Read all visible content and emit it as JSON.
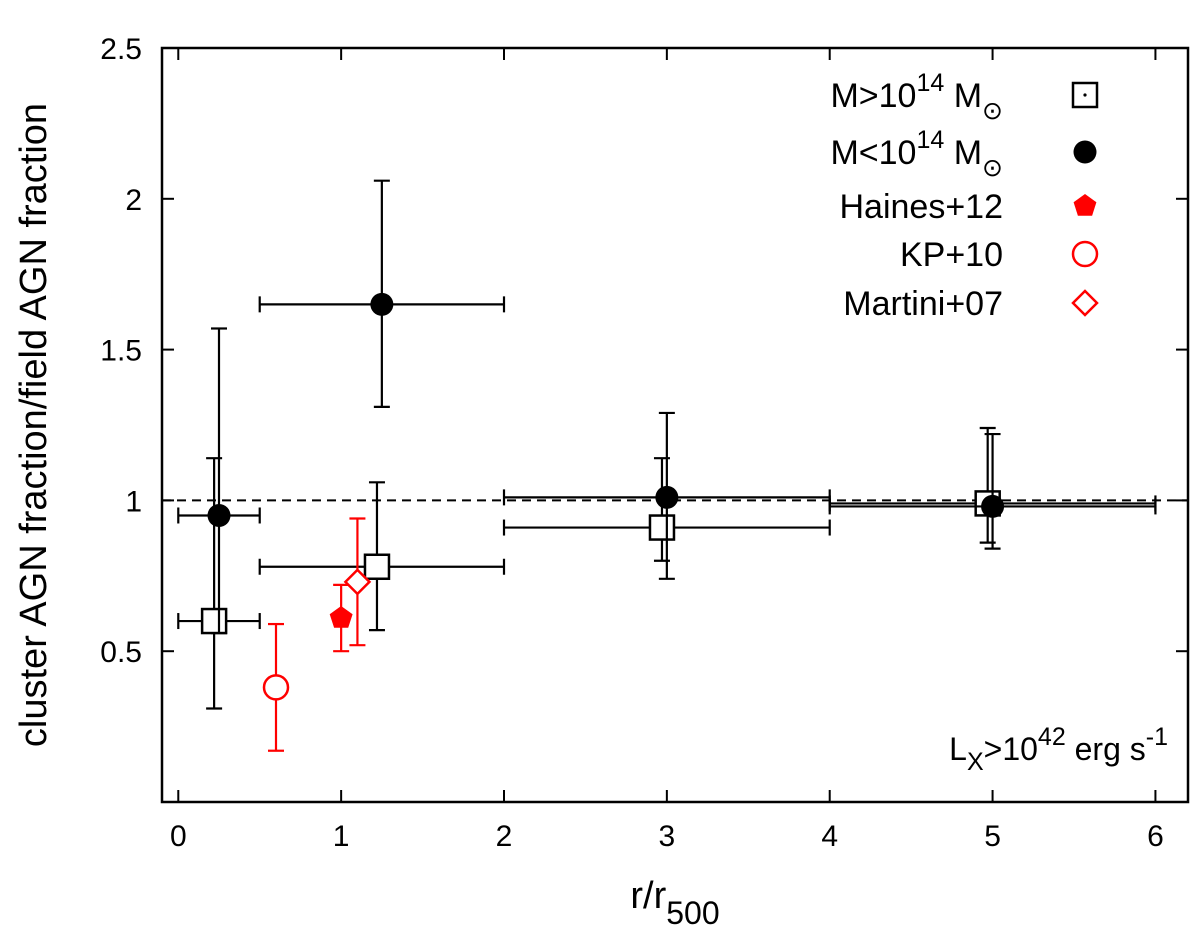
{
  "chart_data": {
    "type": "scatter",
    "xlabel": "r/r",
    "xlabel_sub": "500",
    "ylabel": "cluster AGN fraction/field AGN fraction",
    "xlim": [
      -0.1,
      6.2
    ],
    "ylim": [
      0,
      2.5
    ],
    "x_ticks": [
      0,
      1,
      2,
      3,
      4,
      5,
      6
    ],
    "y_ticks": [
      0.5,
      1,
      1.5,
      2,
      2.5
    ],
    "reference_line": {
      "y": 1,
      "style": "dashed"
    },
    "legend_position": "top-right",
    "annotation": {
      "base": "L",
      "sub": "X",
      "mid": ">10",
      "sup": "42",
      "tail": " erg s",
      "sup2": "-1"
    },
    "series": [
      {
        "name": "M>10^14 M☉",
        "legend": {
          "base": "M>10",
          "sup": "14",
          "mid": " M",
          "sub": "⊙"
        },
        "marker": "open-square",
        "color": "#000000",
        "points": [
          {
            "x": 0.22,
            "y": 0.6,
            "xerr": [
              0.0,
              0.5
            ],
            "yerr": [
              0.31,
              1.14
            ]
          },
          {
            "x": 1.22,
            "y": 0.78,
            "xerr": [
              0.5,
              2.0
            ],
            "yerr": [
              0.57,
              1.06
            ]
          },
          {
            "x": 2.97,
            "y": 0.91,
            "xerr": [
              2.0,
              4.0
            ],
            "yerr": [
              0.8,
              1.14
            ]
          },
          {
            "x": 4.97,
            "y": 0.99,
            "xerr": [
              4.0,
              6.0
            ],
            "yerr": [
              0.86,
              1.24
            ]
          }
        ]
      },
      {
        "name": "M<10^14 M☉",
        "legend": {
          "base": "M<10",
          "sup": "14",
          "mid": " M",
          "sub": "⊙"
        },
        "marker": "filled-circle",
        "color": "#000000",
        "points": [
          {
            "x": 0.25,
            "y": 0.95,
            "xerr": [
              0.0,
              0.5
            ],
            "yerr": [
              0.56,
              1.57
            ]
          },
          {
            "x": 1.25,
            "y": 1.65,
            "xerr": [
              0.5,
              2.0
            ],
            "yerr": [
              1.31,
              2.06
            ]
          },
          {
            "x": 3.0,
            "y": 1.01,
            "xerr": [
              2.0,
              4.0
            ],
            "yerr": [
              0.74,
              1.29
            ]
          },
          {
            "x": 5.0,
            "y": 0.98,
            "xerr": [
              4.0,
              6.0
            ],
            "yerr": [
              0.84,
              1.22
            ]
          }
        ]
      },
      {
        "name": "Haines+12",
        "legend": {
          "base": "Haines+12"
        },
        "marker": "filled-pentagon",
        "color": "#ff0000",
        "points": [
          {
            "x": 1.0,
            "y": 0.61,
            "yerr": [
              0.5,
              0.72
            ]
          }
        ]
      },
      {
        "name": "KP+10",
        "legend": {
          "base": "KP+10"
        },
        "marker": "open-circle",
        "color": "#ff0000",
        "points": [
          {
            "x": 0.6,
            "y": 0.38,
            "yerr": [
              0.17,
              0.59
            ]
          }
        ]
      },
      {
        "name": "Martini+07",
        "legend": {
          "base": "Martini+07"
        },
        "marker": "open-diamond",
        "color": "#ff0000",
        "points": [
          {
            "x": 1.1,
            "y": 0.73,
            "yerr": [
              0.52,
              0.94
            ]
          }
        ]
      }
    ]
  }
}
